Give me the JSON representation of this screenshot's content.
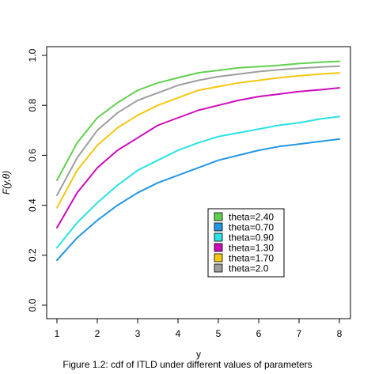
{
  "caption": "Figure 1.2: cdf of ITLD under different values of parameters",
  "chart_data": {
    "type": "line",
    "xlabel": "y",
    "ylabel": "F(y,θ)",
    "xlim": [
      1,
      8
    ],
    "ylim": [
      0,
      1
    ],
    "x_ticks": [
      "1",
      "2",
      "3",
      "4",
      "5",
      "6",
      "7",
      "8"
    ],
    "y_ticks": [
      "0.0",
      "0.2",
      "0.4",
      "0.6",
      "0.8",
      "1.0"
    ],
    "grid": false,
    "legend_position": "bottom-right inside plot",
    "x": [
      1,
      1.5,
      2,
      2.5,
      3,
      3.5,
      4,
      4.5,
      5,
      5.5,
      6,
      6.5,
      7,
      7.5,
      8
    ],
    "series": [
      {
        "name": "theta=2.40",
        "color": "#61D04F",
        "values": [
          0.5,
          0.65,
          0.75,
          0.81,
          0.86,
          0.89,
          0.91,
          0.93,
          0.94,
          0.95,
          0.955,
          0.96,
          0.967,
          0.972,
          0.976
        ]
      },
      {
        "name": "theta=0.70",
        "color": "#2297E6",
        "values": [
          0.18,
          0.27,
          0.34,
          0.4,
          0.45,
          0.49,
          0.52,
          0.55,
          0.58,
          0.6,
          0.62,
          0.635,
          0.645,
          0.655,
          0.665
        ]
      },
      {
        "name": "theta=0.90",
        "color": "#28E2E5",
        "values": [
          0.23,
          0.33,
          0.41,
          0.48,
          0.54,
          0.58,
          0.62,
          0.65,
          0.675,
          0.69,
          0.705,
          0.72,
          0.73,
          0.745,
          0.755
        ]
      },
      {
        "name": "theta=1.30",
        "color": "#CD0BBC",
        "values": [
          0.31,
          0.45,
          0.55,
          0.62,
          0.67,
          0.72,
          0.75,
          0.78,
          0.8,
          0.82,
          0.835,
          0.845,
          0.855,
          0.862,
          0.87
        ]
      },
      {
        "name": "theta=1.70",
        "color": "#F5C710",
        "values": [
          0.39,
          0.54,
          0.64,
          0.71,
          0.76,
          0.8,
          0.83,
          0.86,
          0.875,
          0.89,
          0.9,
          0.91,
          0.918,
          0.925,
          0.93
        ]
      },
      {
        "name": "theta=2.0",
        "color": "#9E9E9E",
        "values": [
          0.44,
          0.59,
          0.7,
          0.77,
          0.82,
          0.85,
          0.88,
          0.9,
          0.915,
          0.925,
          0.935,
          0.942,
          0.948,
          0.953,
          0.957
        ]
      }
    ]
  }
}
